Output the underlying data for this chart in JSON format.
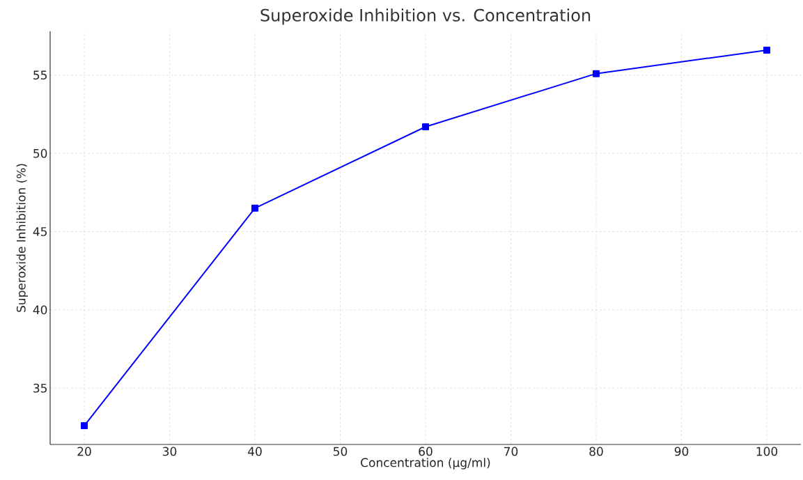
{
  "chart_data": {
    "type": "line",
    "title": "Superoxide Inhibition vs. Concentration",
    "xlabel": "Concentration (µg/ml)",
    "ylabel": "Superoxide Inhibition (%)",
    "x": [
      20,
      40,
      60,
      80,
      100
    ],
    "series": [
      {
        "color": "#0000ff",
        "values": [
          32.6,
          46.5,
          51.7,
          55.1,
          56.6
        ]
      }
    ],
    "xlim": [
      16,
      104
    ],
    "ylim": [
      31.4,
      57.8
    ],
    "xticks": [
      20,
      30,
      40,
      50,
      60,
      70,
      80,
      90,
      100
    ],
    "yticks": [
      35,
      40,
      45,
      50,
      55
    ],
    "grid": true,
    "marker": "square",
    "line_style": "solid"
  }
}
